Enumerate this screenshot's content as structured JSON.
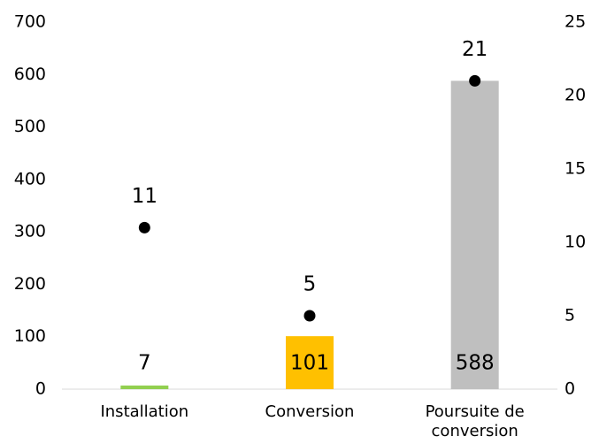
{
  "chart_data": {
    "type": "bar",
    "categories": [
      "Installation",
      "Conversion",
      "Poursuite de conversion"
    ],
    "series": [
      {
        "type": "bar",
        "colors": [
          "#92d050",
          "#ffc000",
          "#bfbfbf"
        ],
        "values": [
          7,
          101,
          588
        ]
      },
      {
        "type": "scatter",
        "axis": "y2",
        "color": "#000000",
        "values": [
          11,
          5,
          21
        ]
      }
    ],
    "ylim": [
      0,
      700
    ],
    "yticks": [
      0,
      100,
      200,
      300,
      400,
      500,
      600,
      700
    ],
    "y2lim": [
      0,
      25
    ],
    "y2ticks": [
      0,
      5,
      10,
      15,
      20,
      25
    ],
    "grid": false
  }
}
